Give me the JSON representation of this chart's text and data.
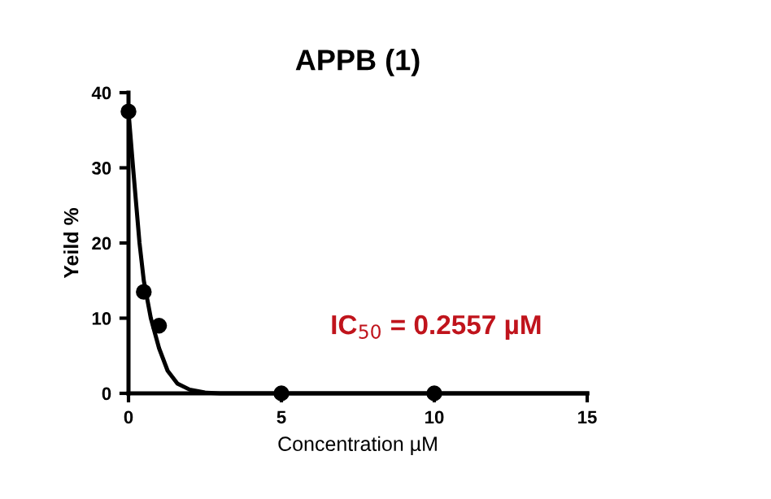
{
  "chart_data": {
    "type": "scatter",
    "title": "APPB (1)",
    "xlabel": "Concentration µM",
    "ylabel": "Yeild %",
    "annotations": [
      "IC$_{50}$ = 0.2557 µM"
    ],
    "series": [
      {
        "color": "#000000",
        "marker": "circle",
        "x": [
          0,
          0.5,
          1,
          5,
          10
        ],
        "values": [
          37.5,
          13.5,
          9,
          0,
          0
        ]
      },
      {
        "type": "line",
        "color": "#000000",
        "x": [
          0,
          0.15,
          0.36,
          0.5,
          0.73,
          1,
          1.28,
          1.6,
          2,
          2.5,
          3,
          15
        ],
        "values": [
          37.5,
          30,
          20,
          15,
          10,
          6,
          3,
          1.3,
          0.5,
          0.1,
          0,
          0
        ]
      }
    ],
    "xlim": [
      0,
      15
    ],
    "xticks": [
      0,
      5,
      10,
      15
    ],
    "ylim": [
      0,
      40
    ],
    "yticks": [
      0,
      10,
      20,
      30,
      40
    ],
    "grid": false,
    "legend": false
  }
}
